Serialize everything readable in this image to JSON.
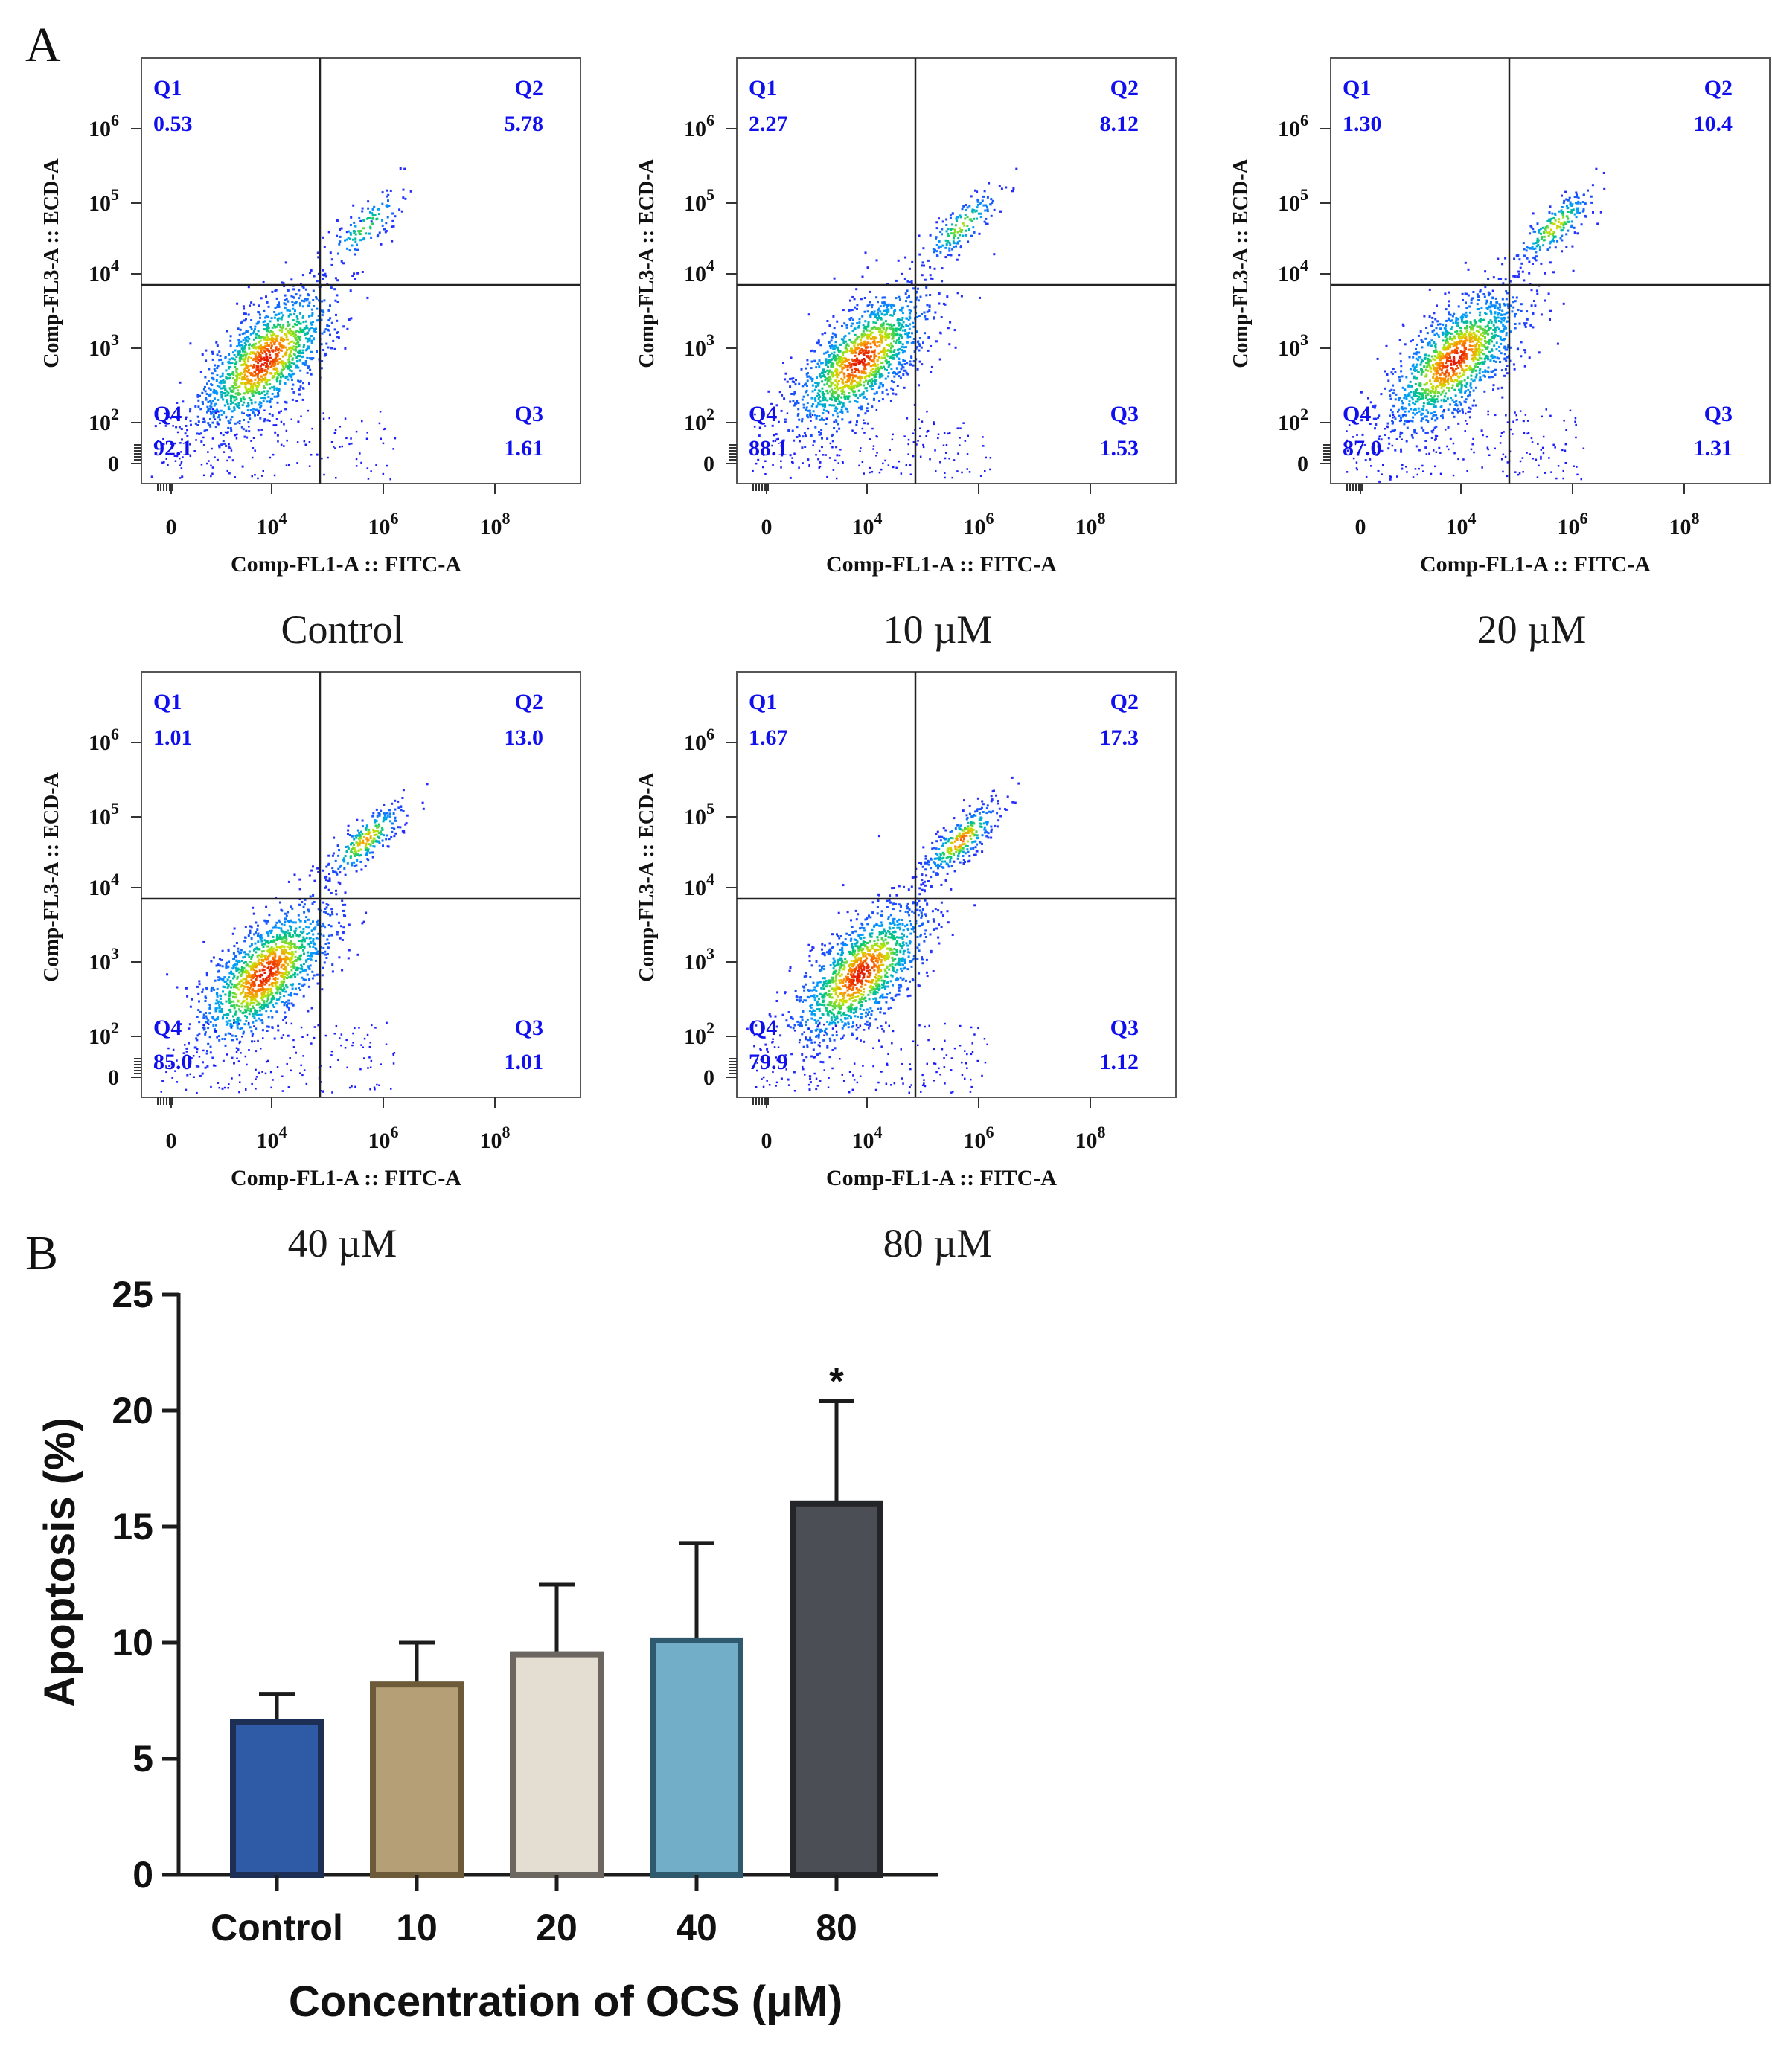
{
  "panel_labels": {
    "a": "A",
    "b": "B"
  },
  "flow_axes": {
    "ylabel": "Comp-FL3-A :: ECD-A",
    "xlabel": "Comp-FL1-A :: FITC-A",
    "y_ticks": [
      {
        "label": "0",
        "sup": ""
      },
      {
        "label": "10",
        "sup": "2"
      },
      {
        "label": "10",
        "sup": "3"
      },
      {
        "label": "10",
        "sup": "4"
      },
      {
        "label": "10",
        "sup": "5"
      },
      {
        "label": "10",
        "sup": "6"
      }
    ],
    "x_ticks": [
      {
        "label": "0",
        "sup": ""
      },
      {
        "label": "10",
        "sup": "4"
      },
      {
        "label": "10",
        "sup": "6"
      },
      {
        "label": "10",
        "sup": "8"
      }
    ]
  },
  "flow_panels": [
    {
      "caption": "Control",
      "q1_name": "Q1",
      "q1": "0.53",
      "q2_name": "Q2",
      "q2": "5.78",
      "q3_name": "Q3",
      "q3": "1.61",
      "q4_name": "Q4",
      "q4": "92.1"
    },
    {
      "caption": "10 µM",
      "q1_name": "Q1",
      "q1": "2.27",
      "q2_name": "Q2",
      "q2": "8.12",
      "q3_name": "Q3",
      "q3": "1.53",
      "q4_name": "Q4",
      "q4": "88.1"
    },
    {
      "caption": "20 µM",
      "q1_name": "Q1",
      "q1": "1.30",
      "q2_name": "Q2",
      "q2": "10.4",
      "q3_name": "Q3",
      "q3": "1.31",
      "q4_name": "Q4",
      "q4": "87.0"
    },
    {
      "caption": "40 µM",
      "q1_name": "Q1",
      "q1": "1.01",
      "q2_name": "Q2",
      "q2": "13.0",
      "q3_name": "Q3",
      "q3": "1.01",
      "q4_name": "Q4",
      "q4": "85.0"
    },
    {
      "caption": "80 µM",
      "q1_name": "Q1",
      "q1": "1.67",
      "q2_name": "Q2",
      "q2": "17.3",
      "q3_name": "Q3",
      "q3": "1.12",
      "q4_name": "Q4",
      "q4": "79.9"
    }
  ],
  "colors": {
    "quadrant_text": "#1010ee",
    "dot_low": "#1a1aff",
    "bar_outline": "#1c1c1c",
    "bars": [
      "#2f5ba6",
      "#b59f76",
      "#e3ddd2",
      "#72aec8",
      "#4b4f55"
    ],
    "bar_borders": [
      "#1d2f55",
      "#6d5a38",
      "#6b6760",
      "#2f5a6e",
      "#232528"
    ]
  },
  "chart_data": {
    "type": "bar",
    "title": "",
    "categories": [
      "Control",
      "10",
      "20",
      "40",
      "80"
    ],
    "values": [
      6.6,
      8.2,
      9.5,
      10.1,
      16.0
    ],
    "error_upper": [
      7.8,
      10.0,
      12.5,
      14.3,
      20.4
    ],
    "annotations": [
      {
        "category": "80",
        "text": "*"
      }
    ],
    "xlabel": "Concentration of OCS (μM)",
    "ylabel": "Apoptosis (%)",
    "ylim": [
      0,
      25
    ],
    "y_ticks": [
      0,
      5,
      10,
      15,
      20,
      25
    ]
  }
}
